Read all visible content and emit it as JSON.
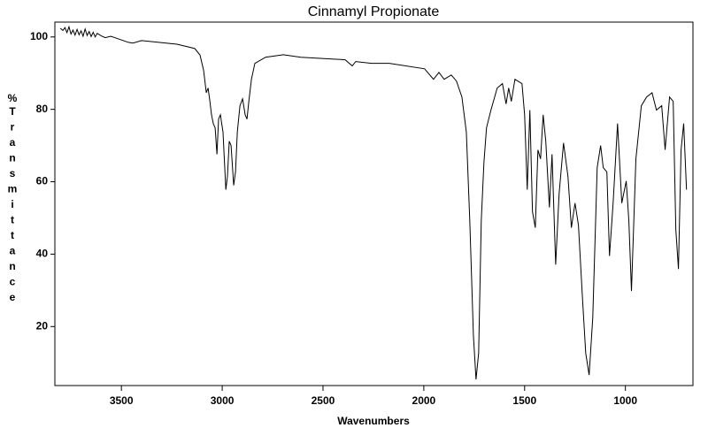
{
  "chart_data": {
    "type": "line",
    "title": "Cinnamyl Propionate",
    "x_label": "Wavenumbers",
    "y_label": "% Transmittance",
    "xlim": [
      3830,
      665
    ],
    "ylim": [
      3.7,
      104.1
    ],
    "xticks": [
      3500,
      3000,
      2500,
      2000,
      1500,
      1000
    ],
    "yticks": [
      20,
      40,
      60,
      80,
      100
    ],
    "series": [
      {
        "name": "Cinnamyl Propionate",
        "color": "#000000",
        "x": [
          3803,
          3790,
          3780,
          3770,
          3760,
          3750,
          3740,
          3730,
          3720,
          3710,
          3700,
          3690,
          3680,
          3670,
          3660,
          3650,
          3640,
          3630,
          3620,
          3600,
          3580,
          3553,
          3465,
          3443,
          3400,
          3224,
          3136,
          3110,
          3092,
          3079,
          3070,
          3061,
          3053,
          3044,
          3035,
          3026,
          3018,
          3009,
          2996,
          2982,
          2974,
          2965,
          2956,
          2943,
          2934,
          2925,
          2912,
          2899,
          2886,
          2877,
          2868,
          2855,
          2838,
          2785,
          2697,
          2610,
          2390,
          2355,
          2338,
          2259,
          2171,
          1996,
          1952,
          1925,
          1899,
          1864,
          1838,
          1811,
          1789,
          1772,
          1754,
          1741,
          1728,
          1715,
          1702,
          1689,
          1667,
          1636,
          1610,
          1592,
          1579,
          1566,
          1548,
          1513,
          1500,
          1487,
          1474,
          1461,
          1447,
          1434,
          1421,
          1408,
          1395,
          1377,
          1364,
          1346,
          1329,
          1307,
          1285,
          1268,
          1250,
          1233,
          1215,
          1197,
          1180,
          1162,
          1140,
          1123,
          1110,
          1092,
          1079,
          1061,
          1039,
          1018,
          996,
          983,
          970,
          948,
          921,
          895,
          868,
          846,
          820,
          803,
          781,
          763,
          750,
          737,
          724,
          711,
          697
        ],
        "values": [
          102.4,
          101.8,
          102.6,
          101.2,
          102.8,
          100.8,
          101.9,
          100.5,
          102.1,
          100.6,
          101.7,
          100.2,
          102.2,
          100.4,
          101.5,
          100.1,
          101.3,
          100.0,
          101.0,
          100.3,
          99.8,
          100.2,
          98.5,
          98.3,
          99.0,
          98.0,
          96.8,
          95.0,
          90.7,
          84.6,
          85.9,
          82.2,
          78.5,
          76.0,
          74.9,
          67.6,
          77.3,
          78.5,
          73.7,
          57.8,
          61.5,
          71.2,
          70.0,
          59.0,
          62.7,
          73.7,
          81.0,
          82.9,
          78.5,
          77.3,
          82.2,
          88.3,
          92.7,
          94.4,
          95.1,
          94.4,
          93.7,
          92.0,
          93.2,
          92.7,
          92.7,
          91.2,
          88.3,
          90.2,
          88.3,
          89.5,
          87.8,
          83.4,
          73.7,
          49.3,
          17.6,
          5.4,
          12.7,
          49.3,
          65.1,
          74.9,
          79.8,
          85.9,
          87.1,
          81.5,
          85.9,
          82.2,
          88.3,
          87.1,
          78.5,
          57.8,
          79.8,
          51.7,
          47.3,
          68.8,
          66.3,
          78.5,
          71.2,
          52.9,
          67.6,
          37.1,
          56.6,
          70.7,
          61.5,
          47.3,
          54.1,
          48.0,
          29.8,
          12.7,
          6.6,
          22.4,
          63.9,
          70.0,
          63.9,
          62.7,
          39.5,
          54.1,
          76.1,
          54.1,
          60.2,
          49.3,
          29.8,
          66.3,
          81.0,
          83.4,
          84.6,
          79.8,
          81.0,
          68.8,
          83.4,
          82.2,
          46.8,
          35.9,
          68.8,
          76.1,
          57.8
        ]
      }
    ]
  }
}
